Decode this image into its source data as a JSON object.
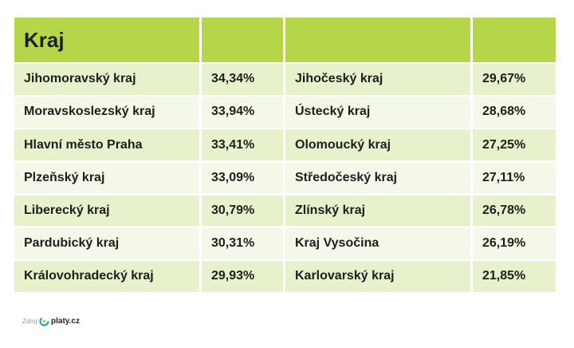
{
  "header": {
    "title": "Kraj"
  },
  "table": {
    "rows": [
      [
        "Jihomoravský kraj",
        "34,34%",
        "Jihočeský kraj",
        "29,67%"
      ],
      [
        "Moravskoslezský kraj",
        "33,94%",
        "Ústecký kraj",
        "28,68%"
      ],
      [
        "Hlavní město Praha",
        "33,41%",
        "Olomoucký kraj",
        "27,25%"
      ],
      [
        "Plzeňský kraj",
        "33,09%",
        "Středočeský kraj",
        "27,11%"
      ],
      [
        "Liberecký kraj",
        "30,79%",
        "Zlínský kraj",
        "26,78%"
      ],
      [
        "Pardubický kraj",
        "30,31%",
        "Kraj Vysočina",
        "26,19%"
      ],
      [
        "Královohradecký kraj",
        "29,93%",
        "Karlovarský kraj",
        "21,85%"
      ]
    ]
  },
  "footer": {
    "source_label": "Zdroj:",
    "brand": "platy.cz"
  }
}
